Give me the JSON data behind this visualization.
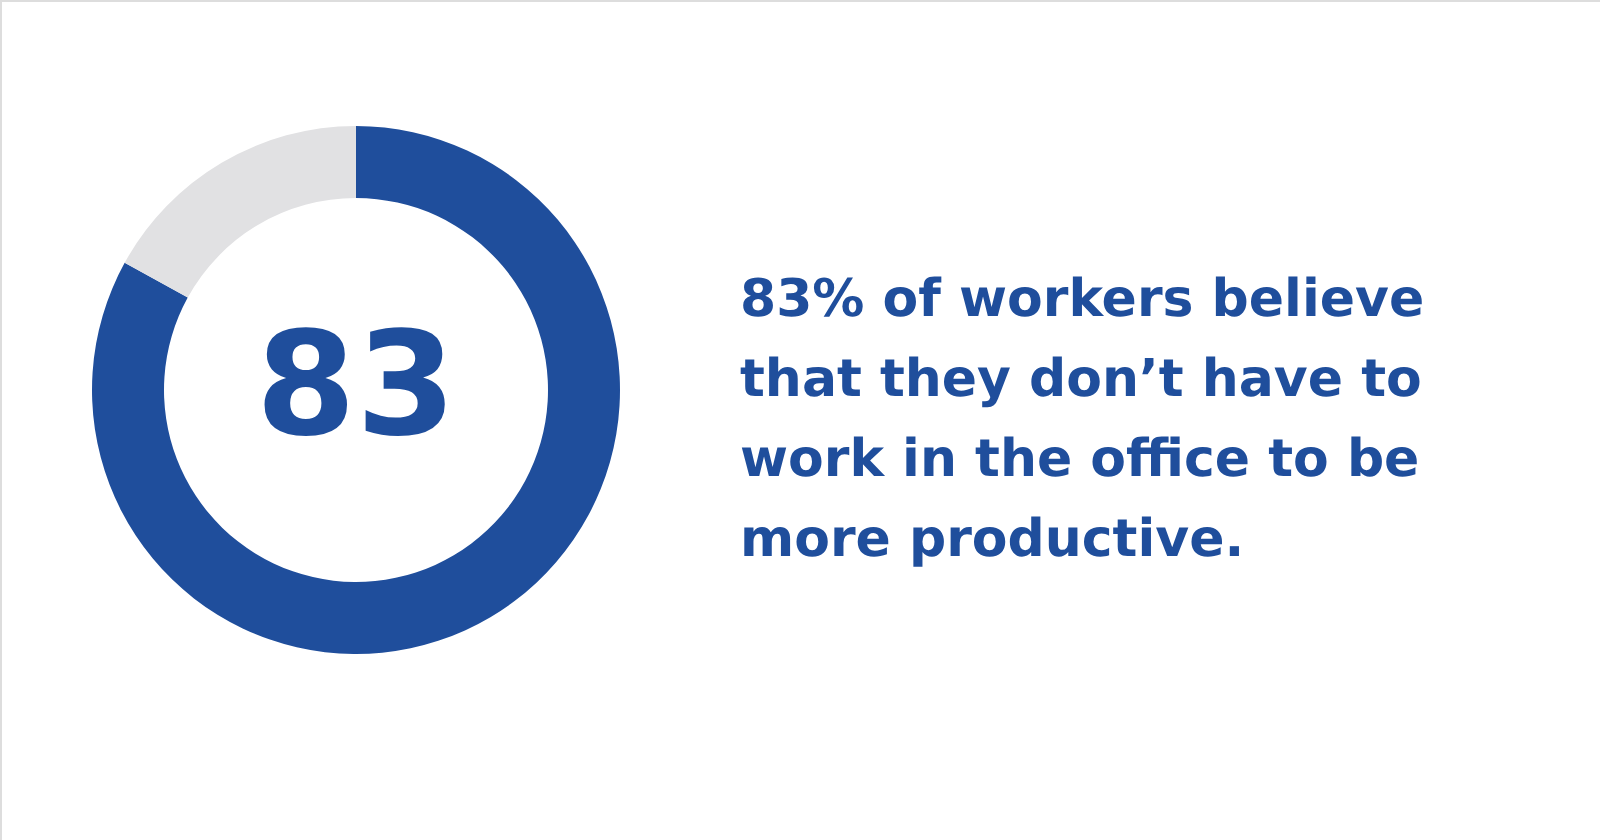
{
  "chart_data": {
    "type": "donut",
    "categories": [
      null,
      null
    ],
    "values": [
      83,
      17
    ],
    "colors": [
      "#1f4e9c",
      "#e1e1e3"
    ],
    "value_labels": [
      "83",
      null
    ],
    "annotations": [
      "83% of workers believe that they don’t have to work in the office to be more productive."
    ]
  }
}
